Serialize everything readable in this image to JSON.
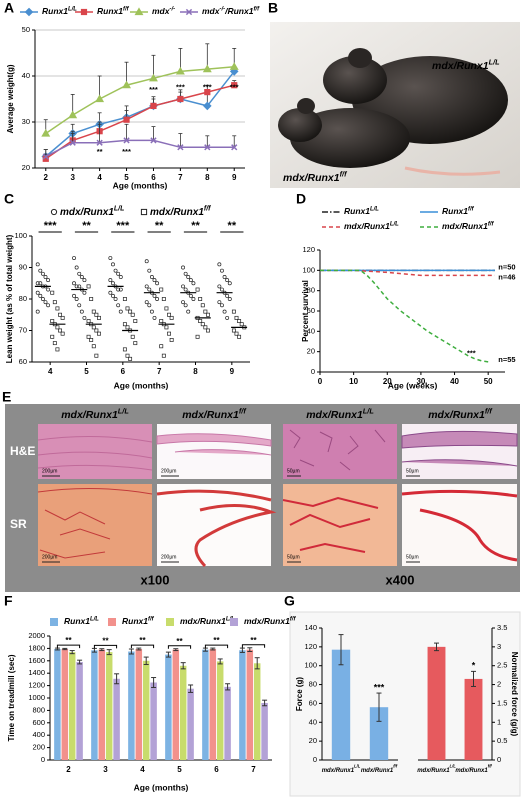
{
  "panels": [
    "A",
    "B",
    "C",
    "D",
    "E",
    "F",
    "G"
  ],
  "photo": {
    "labels": [
      [
        "mdx/Runx1",
        "L/L"
      ],
      [
        "mdx/Runx1",
        "f/f"
      ]
    ]
  },
  "histology": {
    "columns": [
      [
        "mdx/Runx1",
        "L/L"
      ],
      [
        "mdx/Runx1",
        "f/f"
      ],
      [
        "mdx/Runx1",
        "L/L"
      ],
      [
        "mdx/Runx1",
        "f/f"
      ]
    ],
    "rows": [
      "H&E",
      "SR"
    ],
    "magnifications": [
      "x100",
      "x400"
    ],
    "scale_bars": [
      "200µm",
      "200µm",
      "50µm",
      "50µm",
      "200µm",
      "200µm",
      "50µm",
      "50µm"
    ]
  },
  "chart_data": [
    {
      "type": "line",
      "xlabel": "Age (months)",
      "ylabel": "Average weight(g)",
      "x": [
        2,
        3,
        4,
        5,
        6,
        7,
        8,
        9
      ],
      "xlim": [
        1.6,
        9.4
      ],
      "xticks": [
        2,
        3,
        4,
        5,
        6,
        7,
        8,
        9
      ],
      "ylim": [
        20,
        50
      ],
      "yticks": [
        20,
        30,
        40,
        50
      ],
      "grid": true,
      "series": [
        {
          "name": [
            "Runx1",
            "L/L"
          ],
          "color": "#4a8fd0",
          "marker": "diamond",
          "values": [
            22.5,
            27.5,
            29.5,
            31,
            33.5,
            35,
            33.5,
            41
          ],
          "errors": [
            1.5,
            2,
            2.5,
            2.5,
            2,
            2,
            3,
            1
          ]
        },
        {
          "name": [
            "Runx1",
            "f/f"
          ],
          "color": "#d9454b",
          "marker": "square",
          "values": [
            22,
            26,
            28,
            30.5,
            33.5,
            35,
            36.5,
            38
          ],
          "errors": [
            1,
            1.5,
            2,
            2,
            1.5,
            1.5,
            1.5,
            1
          ]
        },
        {
          "name": [
            "mdx",
            "-/-"
          ],
          "color": "#9fc25a",
          "marker": "triangle",
          "values": [
            27.5,
            31.5,
            35,
            38,
            39.5,
            41,
            41.5,
            42
          ],
          "errors": [
            3,
            4.5,
            5,
            5,
            5,
            5,
            5.5,
            4
          ]
        },
        {
          "name": [
            "mdx",
            "-/-",
            "/Runx1",
            "f/f"
          ],
          "color": "#8a6fb8",
          "marker": "x",
          "values": [
            22.5,
            25.5,
            25.5,
            26,
            26,
            24.5,
            24.5,
            24.5
          ],
          "errors": [
            1.5,
            2.5,
            4,
            3.5,
            3,
            3,
            2.5,
            2.5
          ]
        }
      ],
      "annotations": [
        {
          "x": 4,
          "y": 23.5,
          "text": "**"
        },
        {
          "x": 5,
          "y": 23.5,
          "text": "***"
        },
        {
          "x": 6,
          "y": 37,
          "text": "***"
        },
        {
          "x": 7,
          "y": 37.5,
          "text": "***"
        },
        {
          "x": 8,
          "y": 37.5,
          "text": "***"
        },
        {
          "x": 9,
          "y": 37.5,
          "text": "***"
        }
      ]
    },
    {
      "type": "strip",
      "xlabel": "Age (months)",
      "ylabel": "Lean weight (as % of total weight)",
      "x": [
        4,
        5,
        6,
        7,
        8,
        9
      ],
      "xlim": [
        3.5,
        9.5
      ],
      "xticks": [
        4,
        5,
        6,
        7,
        8,
        9
      ],
      "ylim": [
        60,
        100
      ],
      "yticks": [
        60,
        70,
        80,
        90,
        100
      ],
      "significance": [
        "***",
        "**",
        "***",
        "**",
        "**",
        "**"
      ],
      "series": [
        {
          "name": [
            "mdx/Runx1",
            "L/L"
          ],
          "color": "#222222",
          "marker": "circle",
          "values": [
            [
              91,
              89,
              88,
              87,
              86,
              85,
              85,
              84,
              84,
              83,
              82,
              81,
              80,
              79,
              78,
              76
            ],
            [
              93,
              90,
              88,
              87,
              86,
              85,
              84,
              84,
              83,
              82,
              81,
              80,
              78,
              76,
              74
            ],
            [
              93,
              91,
              89,
              88,
              87,
              86,
              85,
              84,
              83,
              83,
              82,
              81,
              80,
              78,
              76
            ],
            [
              92,
              89,
              87,
              86,
              85,
              84,
              83,
              82,
              81,
              80,
              79,
              78,
              76,
              74
            ],
            [
              90,
              88,
              87,
              86,
              85,
              84,
              83,
              82,
              81,
              80,
              79,
              78,
              76
            ],
            [
              91,
              89,
              87,
              86,
              85,
              84,
              83,
              82,
              81,
              80,
              79,
              78,
              76,
              74
            ]
          ],
          "means": [
            84,
            83,
            84,
            82,
            82,
            82
          ]
        },
        {
          "name": [
            "mdx/Runx1",
            "f/f"
          ],
          "color": "#222222",
          "marker": "square",
          "values": [
            [
              82,
              79,
              77,
              75,
              74,
              73,
              72,
              71,
              70,
              69,
              68,
              66,
              64
            ],
            [
              84,
              80,
              76,
              75,
              74,
              73,
              72,
              71,
              70,
              69,
              68,
              67,
              65,
              62
            ],
            [
              80,
              77,
              76,
              75,
              73,
              72,
              71,
              70,
              68,
              66,
              64,
              62,
              61
            ],
            [
              83,
              80,
              77,
              75,
              74,
              73,
              72,
              71,
              69,
              67,
              65,
              62
            ],
            [
              83,
              80,
              78,
              76,
              75,
              74,
              73,
              72,
              71,
              70,
              68
            ],
            [
              76,
              74,
              73,
              72,
              71,
              70,
              69,
              68
            ]
          ],
          "means": [
            72,
            72,
            70,
            72,
            74,
            71
          ]
        }
      ]
    },
    {
      "type": "line",
      "xlabel": "Age (weeks)",
      "ylabel": "Percent  survival",
      "xlim": [
        0,
        55
      ],
      "xticks": [
        0,
        10,
        20,
        30,
        40,
        50
      ],
      "ylim": [
        0,
        120
      ],
      "yticks": [
        0,
        20,
        40,
        60,
        80,
        100,
        120
      ],
      "series": [
        {
          "name": [
            "Runx1",
            "L/L"
          ],
          "color": "#222222",
          "dash": "dashdot",
          "x": [
            0,
            52
          ],
          "values": [
            100,
            100
          ]
        },
        {
          "name": [
            "Runx1",
            "f/f"
          ],
          "color": "#3a8fd8",
          "dash": "solid",
          "x": [
            0,
            52
          ],
          "values": [
            100,
            100
          ]
        },
        {
          "name": [
            "mdx/Runx1",
            "L/L"
          ],
          "color": "#d9454b",
          "dash": "dashed",
          "x": [
            0,
            10,
            20,
            30,
            52
          ],
          "values": [
            100,
            100,
            98,
            95,
            95
          ]
        },
        {
          "name": [
            "mdx/Runx1",
            "f/f"
          ],
          "color": "#3fae3f",
          "dash": "dashed",
          "x": [
            0,
            12,
            14,
            16,
            18,
            20,
            22,
            24,
            26,
            28,
            30,
            32,
            34,
            36,
            38,
            40,
            42,
            44,
            46,
            48,
            50
          ],
          "values": [
            100,
            100,
            95,
            88,
            80,
            72,
            66,
            60,
            55,
            50,
            45,
            40,
            36,
            32,
            28,
            24,
            20,
            16,
            13,
            11,
            10
          ]
        }
      ],
      "annotations": [
        {
          "x": 53,
          "y": 103,
          "text": "n=50"
        },
        {
          "x": 53,
          "y": 93,
          "text": "n=46"
        },
        {
          "x": 53,
          "y": 12,
          "text": "n=55"
        },
        {
          "x": 45,
          "y": 18,
          "text": "***"
        }
      ]
    },
    {
      "type": "bar",
      "xlabel": "Age (months)",
      "ylabel": "Time on treadmill (sec)",
      "categories": [
        "2",
        "3",
        "4",
        "5",
        "6",
        "7"
      ],
      "ylim": [
        0,
        2000
      ],
      "yticks": [
        0,
        200,
        400,
        600,
        800,
        1000,
        1200,
        1400,
        1600,
        1800,
        2000
      ],
      "significance": [
        "**",
        "**",
        "**",
        "**",
        "**",
        "**"
      ],
      "series": [
        {
          "name": [
            "Runx1",
            "L/L"
          ],
          "color": "#7db3e3",
          "values": [
            1790,
            1770,
            1750,
            1700,
            1780,
            1770
          ],
          "errors": [
            15,
            30,
            40,
            40,
            25,
            35
          ]
        },
        {
          "name": [
            "Runx1",
            "f/f"
          ],
          "color": "#f2918c",
          "values": [
            1790,
            1780,
            1790,
            1780,
            1790,
            1780
          ],
          "errors": [
            10,
            15,
            15,
            15,
            15,
            30
          ]
        },
        {
          "name": [
            "mdx/Runx1",
            "L/L"
          ],
          "color": "#c8dc6c",
          "values": [
            1740,
            1740,
            1600,
            1520,
            1590,
            1560
          ],
          "errors": [
            25,
            40,
            60,
            50,
            40,
            90
          ]
        },
        {
          "name": [
            "mdx/Runx1",
            "f/f"
          ],
          "color": "#b3a2d6",
          "values": [
            1580,
            1310,
            1250,
            1150,
            1180,
            920
          ],
          "errors": [
            30,
            80,
            80,
            60,
            50,
            45
          ]
        }
      ]
    },
    {
      "type": "bar",
      "ylabel": "Force (g)",
      "categories": [
        [
          "mdx/Runx1",
          "L/L"
        ],
        [
          "mdx/Runx1",
          "f/f"
        ]
      ],
      "values": [
        117,
        56
      ],
      "errors": [
        16,
        15
      ],
      "color": "#79b0e4",
      "ylim": [
        0,
        140
      ],
      "yticks": [
        0,
        20,
        40,
        60,
        80,
        100,
        120,
        140
      ],
      "annotations": [
        {
          "category": 1,
          "text": "***"
        }
      ]
    },
    {
      "type": "bar",
      "ylabel": "Normalized force (g/g)",
      "yaxis_position": "right",
      "categories": [
        [
          "mdx/Runx1",
          "L/L"
        ],
        [
          "mdx/Runx1",
          "f/f"
        ]
      ],
      "values": [
        3,
        2.15
      ],
      "errors": [
        0.1,
        0.2
      ],
      "color": "#e65a5e",
      "ylim": [
        0,
        3.5
      ],
      "yticks": [
        0,
        0.5,
        1,
        1.5,
        2,
        2.5,
        3,
        3.5
      ],
      "annotations": [
        {
          "category": 1,
          "text": "*"
        }
      ]
    }
  ]
}
